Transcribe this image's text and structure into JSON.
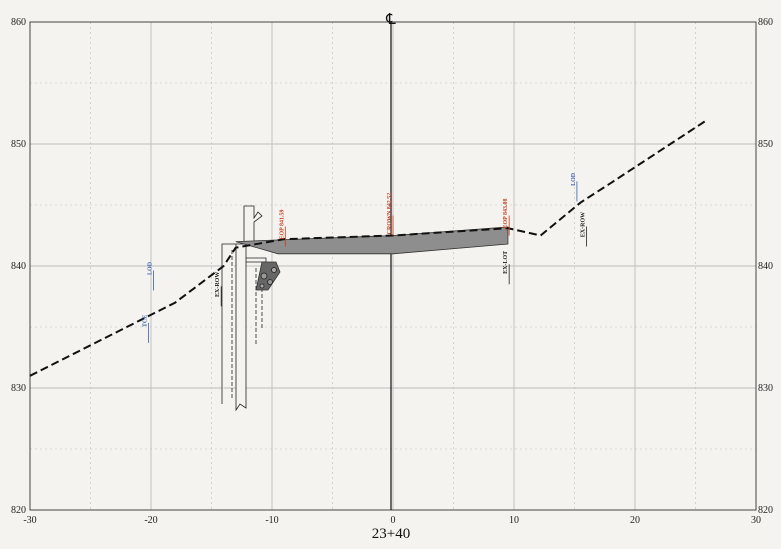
{
  "chart_data": {
    "type": "line",
    "xlim": [
      -30,
      30
    ],
    "ylim": [
      820,
      860
    ],
    "x_ticks": [
      "-30",
      "-20",
      "-10",
      "0",
      "10",
      "20",
      "30"
    ],
    "y_ticks_left": [
      "820",
      "830",
      "840",
      "850",
      "860"
    ],
    "y_ticks_right": [
      "820",
      "830",
      "840",
      "850",
      "860"
    ],
    "station_label": "23+40",
    "centerline_symbol": "℄",
    "grid": true,
    "existing_ground": [
      [
        -30,
        831
      ],
      [
        -24,
        834
      ],
      [
        -18,
        837
      ],
      [
        -14,
        840
      ],
      [
        -13,
        841.5
      ],
      [
        -9,
        842.2
      ],
      [
        0,
        842.5
      ],
      [
        9.5,
        843.1
      ],
      [
        12.2,
        842.5
      ],
      [
        15.5,
        845.2
      ],
      [
        18,
        846.8
      ],
      [
        26,
        852
      ]
    ],
    "pavement_top": [
      [
        -13,
        842
      ],
      [
        0,
        842.5
      ],
      [
        9.5,
        843.2
      ]
    ],
    "pavement_bottom": [
      [
        -9.5,
        841
      ],
      [
        0,
        841
      ],
      [
        9.5,
        841.8
      ]
    ],
    "labels": [
      {
        "text": "TCE",
        "x": -20.2,
        "y": 835.5,
        "color": "#3a5fb0"
      },
      {
        "text": "LOD",
        "x": -19.8,
        "y": 839.8,
        "color": "#3a5fb0"
      },
      {
        "text": "EOP 841.59",
        "x": -8.9,
        "y": 843.4,
        "color": "#c43e1c"
      },
      {
        "text": "EX-ROW",
        "x": -14.2,
        "y": 838.5,
        "color": "#222222"
      },
      {
        "text": "CROWN 842.52",
        "x": 0,
        "y": 844.3,
        "color": "#c43e1c"
      },
      {
        "text": "EOP 843.08",
        "x": 9.6,
        "y": 844.3,
        "color": "#c43e1c"
      },
      {
        "text": "EX-LOT",
        "x": 9.6,
        "y": 840.3,
        "color": "#222222"
      },
      {
        "text": "LOD",
        "x": 15.2,
        "y": 847.1,
        "color": "#3a5fb0"
      },
      {
        "text": "EX-ROW",
        "x": 16,
        "y": 843.4,
        "color": "#222222"
      }
    ],
    "colors": {
      "ground": "#111111",
      "grid": "#bdbdbd",
      "pavement": "#8e8e8e",
      "eop": "#c43e1c",
      "lod": "#3a5fb0"
    }
  }
}
